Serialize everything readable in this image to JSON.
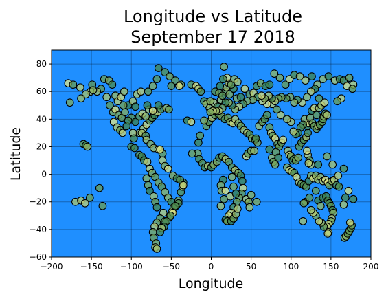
{
  "chart_data": {
    "type": "scatter",
    "title_lines": [
      "Longitude vs Latitude",
      "September 17 2018"
    ],
    "xlabel": "Longitude",
    "ylabel": "Latitude",
    "xlim": [
      -200,
      200
    ],
    "ylim": [
      -60,
      90
    ],
    "xticks": [
      -200,
      -150,
      -100,
      -50,
      0,
      50,
      100,
      150,
      200
    ],
    "yticks": [
      -60,
      -40,
      -20,
      0,
      20,
      40,
      60,
      80
    ],
    "grid": true,
    "legend": "none",
    "colors": {
      "background": "#1f8fff",
      "marker_stroke": "#000000",
      "color_low": "#1f6e4a",
      "color_mid": "#6f9f52",
      "color_high": "#e6e986"
    },
    "points": [
      [
        -179,
        66
      ],
      [
        -173,
        65
      ],
      [
        -164,
        63
      ],
      [
        -151,
        60
      ],
      [
        -149,
        65
      ],
      [
        -138,
        62
      ],
      [
        -134,
        69
      ],
      [
        -128,
        68
      ],
      [
        -124,
        65
      ],
      [
        -120,
        57
      ],
      [
        -117,
        53
      ],
      [
        -113,
        56
      ],
      [
        -109,
        60
      ],
      [
        -104,
        50
      ],
      [
        -98,
        53
      ],
      [
        -93,
        58
      ],
      [
        -88,
        60
      ],
      [
        -79,
        60
      ],
      [
        -73,
        64
      ],
      [
        -68,
        69
      ],
      [
        -66,
        77
      ],
      [
        -58,
        74
      ],
      [
        -52,
        71
      ],
      [
        -45,
        68
      ],
      [
        -38,
        65
      ],
      [
        -25,
        65
      ],
      [
        -19,
        64
      ],
      [
        -16,
        62
      ],
      [
        -13,
        60
      ],
      [
        -9,
        53
      ],
      [
        -6,
        51
      ],
      [
        -2,
        48
      ],
      [
        3,
        52
      ],
      [
        8,
        49
      ],
      [
        12,
        54
      ],
      [
        16,
        78
      ],
      [
        18,
        60
      ],
      [
        23,
        58
      ],
      [
        28,
        62
      ],
      [
        32,
        55
      ],
      [
        37,
        56
      ],
      [
        42,
        62
      ],
      [
        48,
        58
      ],
      [
        53,
        59
      ],
      [
        57,
        64
      ],
      [
        62,
        66
      ],
      [
        68,
        64
      ],
      [
        73,
        65
      ],
      [
        79,
        73
      ],
      [
        86,
        70
      ],
      [
        93,
        65
      ],
      [
        98,
        69
      ],
      [
        104,
        72
      ],
      [
        111,
        71
      ],
      [
        118,
        68
      ],
      [
        126,
        71
      ],
      [
        133,
        65
      ],
      [
        140,
        69
      ],
      [
        147,
        71
      ],
      [
        155,
        68
      ],
      [
        161,
        69
      ],
      [
        166,
        68
      ],
      [
        173,
        70
      ],
      [
        178,
        65
      ],
      [
        -170,
        -20
      ],
      [
        -163,
        -19
      ],
      [
        -158,
        -21
      ],
      [
        -152,
        -17
      ],
      [
        -140,
        -10
      ],
      [
        -136,
        -23
      ],
      [
        -160,
        22
      ],
      [
        -157,
        21
      ],
      [
        -155,
        20
      ],
      [
        -122,
        38
      ],
      [
        -118,
        34
      ],
      [
        -114,
        32
      ],
      [
        -111,
        30
      ],
      [
        -106,
        35
      ],
      [
        -100,
        20
      ],
      [
        -96,
        19
      ],
      [
        -90,
        14
      ],
      [
        -87,
        13
      ],
      [
        -84,
        10
      ],
      [
        -80,
        9
      ],
      [
        -77,
        4
      ],
      [
        -74,
        1
      ],
      [
        -70,
        -2
      ],
      [
        -66,
        -6
      ],
      [
        -62,
        -9
      ],
      [
        -58,
        -13
      ],
      [
        -54,
        -17
      ],
      [
        -50,
        -20
      ],
      [
        -47,
        -24
      ],
      [
        -44,
        -23
      ],
      [
        -41,
        -19
      ],
      [
        -38,
        -13
      ],
      [
        -36,
        -9
      ],
      [
        -35,
        -6
      ],
      [
        -60,
        -28
      ],
      [
        -64,
        -32
      ],
      [
        -68,
        -35
      ],
      [
        -71,
        -38
      ],
      [
        -73,
        -42
      ],
      [
        -72,
        -46
      ],
      [
        -69,
        -50
      ],
      [
        -70,
        -53
      ],
      [
        -68,
        -54
      ],
      [
        -58,
        -34
      ],
      [
        -52,
        -31
      ],
      [
        -49,
        -27
      ],
      [
        -81,
        -3
      ],
      [
        -79,
        -8
      ],
      [
        -77,
        -12
      ],
      [
        -72,
        -16
      ],
      [
        -70,
        -20
      ],
      [
        -68,
        -24
      ],
      [
        -90,
        30
      ],
      [
        -85,
        33
      ],
      [
        -81,
        36
      ],
      [
        -77,
        39
      ],
      [
        -74,
        41
      ],
      [
        -71,
        43
      ],
      [
        -67,
        45
      ],
      [
        -63,
        47
      ],
      [
        -100,
        41
      ],
      [
        -95,
        38
      ],
      [
        -90,
        42
      ],
      [
        -86,
        44
      ],
      [
        -82,
        42
      ],
      [
        -78,
        47
      ],
      [
        -123,
        45
      ],
      [
        -120,
        47
      ],
      [
        -116,
        43
      ],
      [
        -112,
        41
      ],
      [
        -108,
        45
      ],
      [
        -104,
        39
      ],
      [
        -98,
        30
      ],
      [
        -97,
        26
      ],
      [
        -87,
        30
      ],
      [
        -82,
        28
      ],
      [
        -81,
        25
      ],
      [
        -76,
        22
      ],
      [
        -72,
        19
      ],
      [
        -66,
        18
      ],
      [
        -61,
        15
      ],
      [
        -17,
        15
      ],
      [
        -15,
        11
      ],
      [
        -11,
        8
      ],
      [
        -8,
        5
      ],
      [
        -4,
        6
      ],
      [
        0,
        5
      ],
      [
        3,
        7
      ],
      [
        7,
        9
      ],
      [
        10,
        12
      ],
      [
        14,
        13
      ],
      [
        18,
        11
      ],
      [
        22,
        9
      ],
      [
        26,
        5
      ],
      [
        30,
        3
      ],
      [
        34,
        1
      ],
      [
        37,
        -1
      ],
      [
        39,
        -5
      ],
      [
        40,
        -10
      ],
      [
        38,
        -14
      ],
      [
        35,
        -17
      ],
      [
        32,
        -20
      ],
      [
        28,
        -24
      ],
      [
        25,
        -28
      ],
      [
        22,
        -30
      ],
      [
        18,
        -33
      ],
      [
        20,
        -34
      ],
      [
        25,
        -34
      ],
      [
        28,
        -32
      ],
      [
        31,
        -29
      ],
      [
        33,
        -25
      ],
      [
        44,
        -18
      ],
      [
        47,
        -20
      ],
      [
        48,
        -24
      ],
      [
        50,
        -15
      ],
      [
        57,
        -20
      ],
      [
        15,
        -4
      ],
      [
        12,
        -8
      ],
      [
        13,
        -12
      ],
      [
        16,
        -18
      ],
      [
        12,
        -23
      ],
      [
        18,
        -12
      ],
      [
        24,
        -16
      ],
      [
        28,
        -9
      ],
      [
        31,
        -14
      ],
      [
        26,
        -2
      ],
      [
        -6,
        35
      ],
      [
        -3,
        38
      ],
      [
        1,
        41
      ],
      [
        5,
        43
      ],
      [
        9,
        44
      ],
      [
        13,
        42
      ],
      [
        17,
        40
      ],
      [
        21,
        41
      ],
      [
        24,
        38
      ],
      [
        27,
        37
      ],
      [
        30,
        40
      ],
      [
        34,
        37
      ],
      [
        37,
        35
      ],
      [
        41,
        32
      ],
      [
        45,
        30
      ],
      [
        48,
        29
      ],
      [
        51,
        26
      ],
      [
        55,
        25
      ],
      [
        58,
        23
      ],
      [
        44,
        13
      ],
      [
        46,
        15
      ],
      [
        50,
        17
      ],
      [
        54,
        17
      ],
      [
        56,
        26
      ],
      [
        60,
        35
      ],
      [
        64,
        38
      ],
      [
        67,
        40
      ],
      [
        70,
        43
      ],
      [
        73,
        34
      ],
      [
        75,
        30
      ],
      [
        77,
        28
      ],
      [
        80,
        26
      ],
      [
        83,
        22
      ],
      [
        85,
        20
      ],
      [
        88,
        23
      ],
      [
        90,
        25
      ],
      [
        73,
        18
      ],
      [
        76,
        12
      ],
      [
        78,
        9
      ],
      [
        80,
        7
      ],
      [
        81,
        16
      ],
      [
        84,
        12
      ],
      [
        96,
        17
      ],
      [
        98,
        14
      ],
      [
        100,
        13
      ],
      [
        102,
        10
      ],
      [
        104,
        11
      ],
      [
        106,
        10
      ],
      [
        109,
        12
      ],
      [
        110,
        20
      ],
      [
        113,
        23
      ],
      [
        116,
        25
      ],
      [
        119,
        27
      ],
      [
        121,
        30
      ],
      [
        120,
        35
      ],
      [
        122,
        37
      ],
      [
        117,
        40
      ],
      [
        115,
        36
      ],
      [
        112,
        34
      ],
      [
        109,
        30
      ],
      [
        106,
        29
      ],
      [
        103,
        31
      ],
      [
        100,
        38
      ],
      [
        95,
        40
      ],
      [
        87,
        43
      ],
      [
        82,
        47
      ],
      [
        76,
        51
      ],
      [
        70,
        51
      ],
      [
        64,
        53
      ],
      [
        58,
        56
      ],
      [
        52,
        54
      ],
      [
        45,
        53
      ],
      [
        40,
        51
      ],
      [
        35,
        49
      ],
      [
        30,
        47
      ],
      [
        26,
        50
      ],
      [
        22,
        52
      ],
      [
        18,
        52
      ],
      [
        14,
        48
      ],
      [
        10,
        46
      ],
      [
        6,
        46
      ],
      [
        2,
        46
      ],
      [
        -1,
        45
      ],
      [
        124,
        41
      ],
      [
        127,
        37
      ],
      [
        129,
        35
      ],
      [
        132,
        33
      ],
      [
        134,
        35
      ],
      [
        136,
        36
      ],
      [
        139,
        38
      ],
      [
        140,
        40
      ],
      [
        141,
        42
      ],
      [
        143,
        44
      ],
      [
        145,
        43
      ],
      [
        126,
        46
      ],
      [
        129,
        48
      ],
      [
        132,
        43
      ],
      [
        135,
        48
      ],
      [
        138,
        50
      ],
      [
        142,
        52
      ],
      [
        135,
        55
      ],
      [
        130,
        62
      ],
      [
        125,
        60
      ],
      [
        120,
        56
      ],
      [
        114,
        52
      ],
      [
        108,
        54
      ],
      [
        104,
        52
      ],
      [
        99,
        56
      ],
      [
        94,
        55
      ],
      [
        88,
        56
      ],
      [
        84,
        55
      ],
      [
        80,
        53
      ],
      [
        76,
        55
      ],
      [
        72,
        57
      ],
      [
        67,
        55
      ],
      [
        63,
        57
      ],
      [
        95,
        5
      ],
      [
        98,
        3
      ],
      [
        101,
        2
      ],
      [
        104,
        1
      ],
      [
        107,
        -2
      ],
      [
        110,
        -6
      ],
      [
        113,
        -7
      ],
      [
        116,
        -8
      ],
      [
        119,
        -9
      ],
      [
        122,
        -5
      ],
      [
        125,
        -1
      ],
      [
        128,
        -3
      ],
      [
        131,
        -1
      ],
      [
        134,
        -4
      ],
      [
        137,
        -2
      ],
      [
        140,
        -5
      ],
      [
        143,
        -4
      ],
      [
        146,
        -6
      ],
      [
        148,
        -8
      ],
      [
        151,
        -5
      ],
      [
        154,
        -4
      ],
      [
        157,
        -8
      ],
      [
        160,
        -9
      ],
      [
        121,
        14
      ],
      [
        123,
        10
      ],
      [
        125,
        7
      ],
      [
        122,
        8
      ],
      [
        120,
        17
      ],
      [
        115,
        -34
      ],
      [
        118,
        -20
      ],
      [
        116,
        -21
      ],
      [
        123,
        -17
      ],
      [
        131,
        -12
      ],
      [
        134,
        -19
      ],
      [
        137,
        -23
      ],
      [
        140,
        -17
      ],
      [
        144,
        -16
      ],
      [
        146,
        -19
      ],
      [
        148,
        -21
      ],
      [
        150,
        -23
      ],
      [
        152,
        -26
      ],
      [
        153,
        -28
      ],
      [
        151,
        -32
      ],
      [
        150,
        -34
      ],
      [
        147,
        -36
      ],
      [
        145,
        -38
      ],
      [
        141,
        -38
      ],
      [
        138,
        -35
      ],
      [
        135,
        -34
      ],
      [
        131,
        -30
      ],
      [
        128,
        -28
      ],
      [
        125,
        -26
      ],
      [
        147,
        -42
      ],
      [
        146,
        -43
      ],
      [
        167,
        -46
      ],
      [
        169,
        -45
      ],
      [
        171,
        -43
      ],
      [
        173,
        -41
      ],
      [
        175,
        -39
      ],
      [
        176,
        -37
      ],
      [
        174,
        -35
      ],
      [
        166,
        -22
      ],
      [
        168,
        -17
      ],
      [
        178,
        -18
      ],
      [
        172,
        -12
      ],
      [
        159,
        -1
      ],
      [
        166,
        4
      ],
      [
        152,
        7
      ],
      [
        134,
        7
      ],
      [
        145,
        13
      ],
      [
        163,
        55
      ],
      [
        158,
        53
      ],
      [
        170,
        64
      ],
      [
        177,
        62
      ],
      [
        -143,
        60
      ],
      [
        -131,
        56
      ],
      [
        -157,
        58
      ],
      [
        -148,
        61
      ],
      [
        -163,
        55
      ],
      [
        -177,
        52
      ],
      [
        -127,
        50
      ],
      [
        -110,
        50
      ],
      [
        -95,
        49
      ],
      [
        -80,
        50
      ],
      [
        -73,
        46
      ],
      [
        -66,
        50
      ],
      [
        -56,
        48
      ],
      [
        -53,
        47
      ],
      [
        -30,
        39
      ],
      [
        -25,
        38
      ],
      [
        -24,
        15
      ],
      [
        -9,
        39
      ],
      [
        -14,
        28
      ],
      [
        -16,
        23
      ],
      [
        -1,
        53
      ],
      [
        5,
        60
      ],
      [
        10,
        59
      ],
      [
        14,
        57
      ],
      [
        19,
        63
      ],
      [
        22,
        66
      ],
      [
        25,
        65
      ],
      [
        29,
        69
      ],
      [
        33,
        67
      ],
      [
        11,
        64
      ],
      [
        20,
        70
      ],
      [
        15,
        69
      ],
      [
        -50,
        64
      ],
      [
        -40,
        64
      ],
      [
        -64,
        18
      ],
      [
        -61,
        10
      ],
      [
        -58,
        6
      ],
      [
        -54,
        4
      ],
      [
        -48,
        -1
      ],
      [
        -43,
        -3
      ],
      [
        -39,
        -4
      ],
      [
        -35,
        -8
      ],
      [
        -41,
        -21
      ],
      [
        -45,
        -23
      ],
      [
        -48,
        -28
      ],
      [
        -51,
        -30
      ],
      [
        -56,
        -34
      ],
      [
        -59,
        -38
      ],
      [
        -62,
        -39
      ],
      [
        -64,
        -42
      ]
    ]
  }
}
